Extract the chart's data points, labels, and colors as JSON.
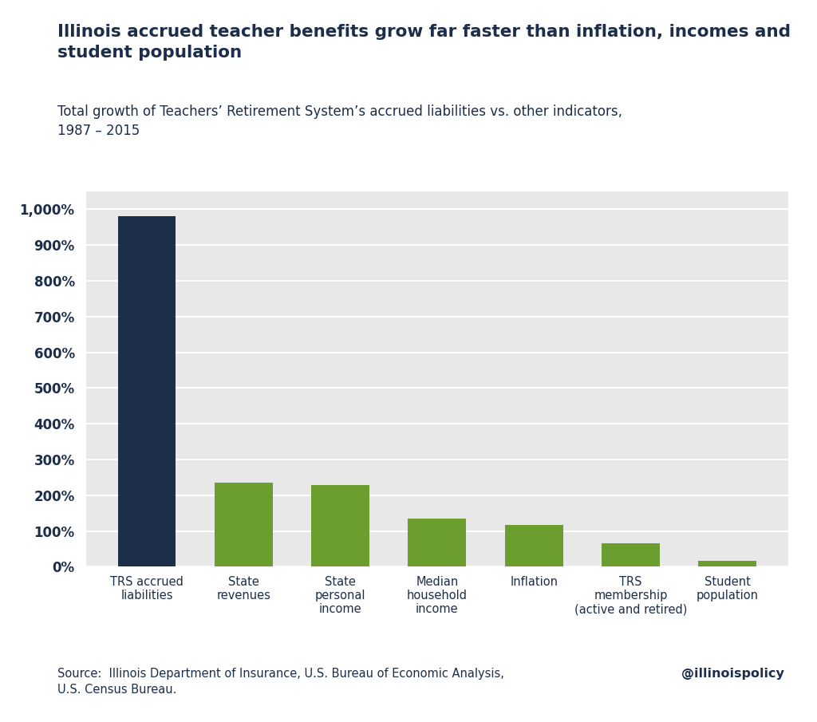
{
  "categories": [
    "TRS accrued\nliabilities",
    "State\nrevenues",
    "State\npersonal\nincome",
    "Median\nhousehold\nincome",
    "Inflation",
    "TRS\nmembership\n(active and retired)",
    "Student\npopulation"
  ],
  "values": [
    980,
    235,
    228,
    134,
    116,
    65,
    16
  ],
  "bar_colors": [
    "#1c2e4a",
    "#6b9e2e",
    "#6b9e2e",
    "#6b9e2e",
    "#6b9e2e",
    "#6b9e2e",
    "#6b9e2e"
  ],
  "title_bold": "Illinois accrued teacher benefits grow far faster than inflation, incomes and\nstudent population",
  "subtitle": "Total growth of Teachers’ Retirement System’s accrued liabilities vs. other indicators,\n1987 – 2015",
  "ylim": [
    0,
    1050
  ],
  "yticks": [
    0,
    100,
    200,
    300,
    400,
    500,
    600,
    700,
    800,
    900,
    1000
  ],
  "source_text": "Source:  Illinois Department of Insurance, U.S. Bureau of Economic Analysis,\nU.S. Census Bureau.",
  "watermark": "@illinoispolicy",
  "background_color": "#ffffff",
  "plot_bg_color": "#e8e8e8",
  "grid_color": "#ffffff",
  "text_color": "#1c2e4a",
  "title_fontsize": 15.5,
  "subtitle_fontsize": 12,
  "tick_fontsize": 12,
  "xlabel_fontsize": 10.5,
  "source_fontsize": 10.5,
  "bar_width": 0.6
}
